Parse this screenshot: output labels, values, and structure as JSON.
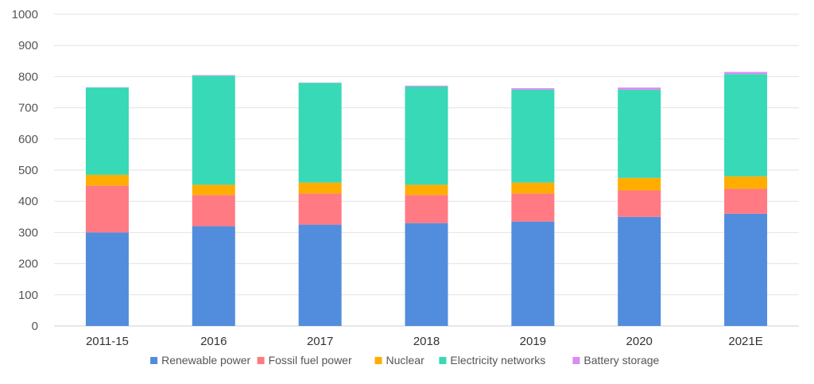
{
  "chart_data": {
    "type": "bar",
    "stacked": true,
    "categories": [
      "2011-15",
      "2016",
      "2017",
      "2018",
      "2019",
      "2020",
      "2021E"
    ],
    "series": [
      {
        "name": "Renewable power",
        "color": "#528ddd",
        "values": [
          300,
          320,
          325,
          330,
          335,
          350,
          360
        ]
      },
      {
        "name": "Fossil fuel power",
        "color": "#ff7a83",
        "values": [
          150,
          100,
          100,
          90,
          90,
          85,
          80
        ]
      },
      {
        "name": "Nuclear",
        "color": "#ffae00",
        "values": [
          35,
          33,
          35,
          33,
          35,
          40,
          40
        ]
      },
      {
        "name": "Electricity networks",
        "color": "#37d9b6",
        "values": [
          280,
          350,
          320,
          315,
          298,
          283,
          328
        ]
      },
      {
        "name": "Battery storage",
        "color": "#d98cf2",
        "values": [
          1,
          2,
          1,
          3,
          5,
          7,
          7
        ]
      }
    ],
    "ylim": [
      0,
      1000
    ],
    "yticks": [
      0,
      100,
      200,
      300,
      400,
      500,
      600,
      700,
      800,
      900,
      1000
    ],
    "grid": true,
    "legend_position": "bottom"
  }
}
